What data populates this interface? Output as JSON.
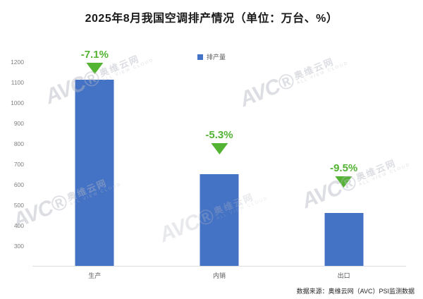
{
  "title": "2025年8月我国空调排产情况（单位：万台、%）",
  "legend_label": "排产量",
  "source": "数据来源：奥维云网（AVC）PSI监测数据",
  "watermark": {
    "brand": "AVC®",
    "cn": "奥维云网",
    "en": "ALL VIEW CLOUD"
  },
  "chart_data": {
    "type": "bar",
    "title": "2025年8月我国空调排产情况（单位：万台、%）",
    "categories": [
      "生产",
      "内销",
      "出口"
    ],
    "values": [
      1113,
      650,
      460
    ],
    "growth_labels": [
      "-7.1%",
      "-5.3%",
      "-9.5%"
    ],
    "legend": "排产量",
    "xlabel": "",
    "ylabel": "",
    "ylim": [
      200,
      1200
    ],
    "yticks": [
      1200,
      1100,
      1000,
      900,
      800,
      700,
      600,
      500,
      400,
      300
    ],
    "grid": false,
    "legend_position": "top-center",
    "bar_color": "#4472C4",
    "growth_color": "#53B332",
    "annotation_gaps": [
      8,
      28,
      36
    ]
  }
}
